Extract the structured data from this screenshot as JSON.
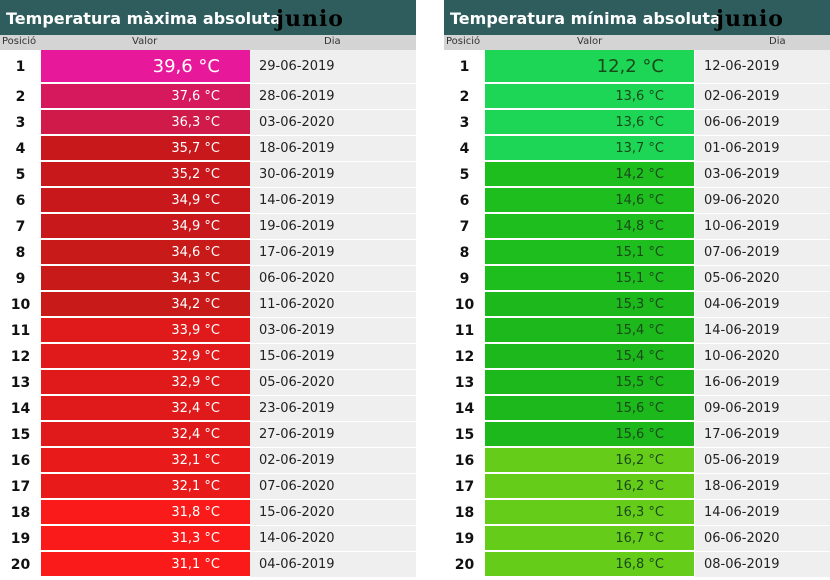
{
  "left": {
    "title": "Temperatura màxima absoluta",
    "month": "junio",
    "headers": {
      "pos": "Posició",
      "val": "Valor",
      "dia": "Dia"
    },
    "rows": [
      {
        "pos": "1",
        "value": "39,6 °C",
        "date": "29-06-2019",
        "color": "#e8189a"
      },
      {
        "pos": "2",
        "value": "37,6 °C",
        "date": "28-06-2019",
        "color": "#d6195c"
      },
      {
        "pos": "3",
        "value": "36,3 °C",
        "date": "03-06-2020",
        "color": "#d01a4a"
      },
      {
        "pos": "4",
        "value": "35,7 °C",
        "date": "18-06-2019",
        "color": "#c8181c"
      },
      {
        "pos": "5",
        "value": "35,2 °C",
        "date": "30-06-2019",
        "color": "#c8181c"
      },
      {
        "pos": "6",
        "value": "34,9 °C",
        "date": "14-06-2019",
        "color": "#c8181c"
      },
      {
        "pos": "7",
        "value": "34,9 °C",
        "date": "19-06-2019",
        "color": "#c8181c"
      },
      {
        "pos": "8",
        "value": "34,6 °C",
        "date": "17-06-2019",
        "color": "#c91a1a"
      },
      {
        "pos": "9",
        "value": "34,3 °C",
        "date": "06-06-2020",
        "color": "#c91a1a"
      },
      {
        "pos": "10",
        "value": "34,2 °C",
        "date": "11-06-2020",
        "color": "#c91a1a"
      },
      {
        "pos": "11",
        "value": "33,9 °C",
        "date": "03-06-2019",
        "color": "#e01a1a"
      },
      {
        "pos": "12",
        "value": "32,9 °C",
        "date": "15-06-2019",
        "color": "#e01a1a"
      },
      {
        "pos": "13",
        "value": "32,9 °C",
        "date": "05-06-2020",
        "color": "#e01a1a"
      },
      {
        "pos": "14",
        "value": "32,4 °C",
        "date": "23-06-2019",
        "color": "#e01a1a"
      },
      {
        "pos": "15",
        "value": "32,4 °C",
        "date": "27-06-2019",
        "color": "#e01a1a"
      },
      {
        "pos": "16",
        "value": "32,1 °C",
        "date": "02-06-2019",
        "color": "#e81a1a"
      },
      {
        "pos": "17",
        "value": "32,1 °C",
        "date": "07-06-2020",
        "color": "#e81a1a"
      },
      {
        "pos": "18",
        "value": "31,8 °C",
        "date": "15-06-2020",
        "color": "#fa1a1a"
      },
      {
        "pos": "19",
        "value": "31,3 °C",
        "date": "14-06-2020",
        "color": "#fa1a1a"
      },
      {
        "pos": "20",
        "value": "31,1 °C",
        "date": "04-06-2019",
        "color": "#fa1a1a"
      }
    ]
  },
  "right": {
    "title": "Temperatura mínima absoluta",
    "month": "junio",
    "headers": {
      "pos": "Posició",
      "val": "Valor",
      "dia": "Dia"
    },
    "rows": [
      {
        "pos": "1",
        "value": "12,2 °C",
        "date": "12-06-2019",
        "color": "#1ed655"
      },
      {
        "pos": "2",
        "value": "13,6 °C",
        "date": "02-06-2019",
        "color": "#1ed655"
      },
      {
        "pos": "3",
        "value": "13,6 °C",
        "date": "06-06-2019",
        "color": "#1ed655"
      },
      {
        "pos": "4",
        "value": "13,7 °C",
        "date": "01-06-2019",
        "color": "#1ed655"
      },
      {
        "pos": "5",
        "value": "14,2 °C",
        "date": "03-06-2019",
        "color": "#1fbe1f"
      },
      {
        "pos": "6",
        "value": "14,6 °C",
        "date": "09-06-2020",
        "color": "#1fbe1f"
      },
      {
        "pos": "7",
        "value": "14,8 °C",
        "date": "10-06-2019",
        "color": "#1fbe1f"
      },
      {
        "pos": "8",
        "value": "15,1 °C",
        "date": "07-06-2019",
        "color": "#1fbe1f"
      },
      {
        "pos": "9",
        "value": "15,1 °C",
        "date": "05-06-2020",
        "color": "#1fbe1f"
      },
      {
        "pos": "10",
        "value": "15,3 °C",
        "date": "04-06-2019",
        "color": "#1cb81c"
      },
      {
        "pos": "11",
        "value": "15,4 °C",
        "date": "14-06-2019",
        "color": "#1cb81c"
      },
      {
        "pos": "12",
        "value": "15,4 °C",
        "date": "10-06-2020",
        "color": "#1cb81c"
      },
      {
        "pos": "13",
        "value": "15,5 °C",
        "date": "16-06-2019",
        "color": "#1cb81c"
      },
      {
        "pos": "14",
        "value": "15,6 °C",
        "date": "09-06-2019",
        "color": "#1cb81c"
      },
      {
        "pos": "15",
        "value": "15,6 °C",
        "date": "17-06-2019",
        "color": "#1cb81c"
      },
      {
        "pos": "16",
        "value": "16,2 °C",
        "date": "05-06-2019",
        "color": "#66cc1a"
      },
      {
        "pos": "17",
        "value": "16,2 °C",
        "date": "18-06-2019",
        "color": "#66cc1a"
      },
      {
        "pos": "18",
        "value": "16,3 °C",
        "date": "14-06-2019",
        "color": "#66cc1a"
      },
      {
        "pos": "19",
        "value": "16,7 °C",
        "date": "06-06-2020",
        "color": "#66cc1a"
      },
      {
        "pos": "20",
        "value": "16,8 °C",
        "date": "08-06-2019",
        "color": "#66cc1a"
      }
    ]
  }
}
